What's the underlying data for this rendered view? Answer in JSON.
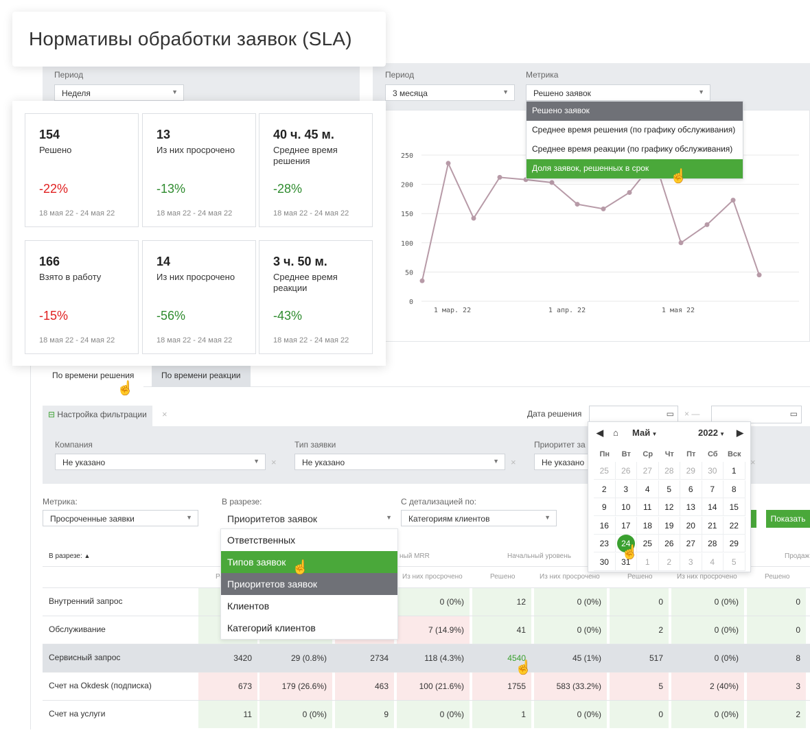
{
  "title": "Нормативы обработки заявок (SLA)",
  "left_filter": {
    "label": "Период",
    "value": "Неделя"
  },
  "right_filter": {
    "period_label": "Период",
    "period_value": "3 месяца",
    "metric_label": "Метрика",
    "metric_value": "Решено заявок"
  },
  "metric_options": [
    "Решено заявок",
    "Среднее время решения (по графику обслуживания)",
    "Среднее время реакции (по графику обслуживания)",
    "Доля заявок, решенных в срок"
  ],
  "stats": [
    {
      "value": "154",
      "name": "Решено",
      "pct": "-22%",
      "dates": "18 мая 22 - 24 мая 22"
    },
    {
      "value": "13",
      "name": "Из них просрочено",
      "pct": "-13%",
      "dates": "18 мая 22 - 24 мая 22"
    },
    {
      "value": "40 ч. 45 м.",
      "name": "Среднее время решения",
      "pct": "-28%",
      "dates": "18 мая 22 - 24 мая 22"
    },
    {
      "value": "166",
      "name": "Взято в работу",
      "pct": "-15%",
      "dates": "18 мая 22 - 24 мая 22"
    },
    {
      "value": "14",
      "name": "Из них просрочено",
      "pct": "-56%",
      "dates": "18 мая 22 - 24 мая 22"
    },
    {
      "value": "3 ч. 50 м.",
      "name": "Среднее время реакции",
      "pct": "-43%",
      "dates": "18 мая 22 - 24 мая 22"
    }
  ],
  "chart_data": {
    "type": "line",
    "x_tick_labels": [
      "1 мар. 22",
      "1 апр. 22",
      "1 мая 22"
    ],
    "y_ticks": [
      0,
      50,
      100,
      150,
      200,
      250
    ],
    "ylim": [
      0,
      250
    ],
    "series": [
      {
        "values": [
          35,
          236,
          142,
          212,
          208,
          203,
          166,
          158,
          186,
          240,
          100,
          131,
          173,
          45
        ]
      }
    ],
    "color": "#b79aa7"
  },
  "tabs": [
    "По времени решения",
    "По времени реакции"
  ],
  "filter_settings": {
    "toggle_label": "Настройка фильтрации",
    "date_label": "Дата решения",
    "company_label": "Компания",
    "company_value": "Не указано",
    "type_label": "Тип заявки",
    "type_value": "Не указано",
    "priority_label": "Приоритет за",
    "priority_value": "Не указано"
  },
  "calendar": {
    "month": "Май",
    "year": "2022",
    "dow": [
      "Пн",
      "Вт",
      "Ср",
      "Чт",
      "Пт",
      "Сб",
      "Вск"
    ],
    "weeks": [
      [
        "25",
        "26",
        "27",
        "28",
        "29",
        "30",
        "1"
      ],
      [
        "2",
        "3",
        "4",
        "5",
        "6",
        "7",
        "8"
      ],
      [
        "9",
        "10",
        "11",
        "12",
        "13",
        "14",
        "15"
      ],
      [
        "16",
        "17",
        "18",
        "19",
        "20",
        "21",
        "22"
      ],
      [
        "23",
        "24",
        "25",
        "26",
        "27",
        "28",
        "29"
      ],
      [
        "30",
        "31",
        "1",
        "2",
        "3",
        "4",
        "5"
      ]
    ],
    "today": "24"
  },
  "report_controls": {
    "metric_label": "Метрика:",
    "metric_value": "Просроченные заявки",
    "slice_label": "В разрезе:",
    "slice_value": "Приоритетов заявок",
    "detail_label": "С детализацией по:",
    "detail_value": "Категориям клиентов",
    "show_button": "Показать"
  },
  "slice_options": [
    "Ответственных",
    "Типов заявок",
    "Приоритетов заявок",
    "Клиентов",
    "Категорий клиентов"
  ],
  "table": {
    "corner_header": "В разрезе:",
    "group_headers": [
      "ный MRR",
      "Начальный уровень",
      "Продаж"
    ],
    "sub_headers": [
      "Ре",
      "Из них просрочено",
      "Решено",
      "Из них просрочено",
      "Решено",
      "Из них просрочено",
      "Решено"
    ],
    "rows": [
      {
        "name": "Внутренний запрос",
        "cells": [
          "",
          "",
          "",
          "0 (0%)",
          "12",
          "0 (0%)",
          "0",
          "0 (0%)",
          "0"
        ]
      },
      {
        "name": "Обслуживание",
        "cells": [
          "",
          "",
          "",
          "7 (14.9%)",
          "41",
          "0 (0%)",
          "2",
          "0 (0%)",
          "0"
        ]
      },
      {
        "name": "Сервисный запрос",
        "cells": [
          "3420",
          "29 (0.8%)",
          "2734",
          "118 (4.3%)",
          "4540",
          "45 (1%)",
          "517",
          "0 (0%)",
          "8"
        ]
      },
      {
        "name": "Счет на Okdesk (подписка)",
        "cells": [
          "673",
          "179 (26.6%)",
          "463",
          "100 (21.6%)",
          "1755",
          "583 (33.2%)",
          "5",
          "2 (40%)",
          "3"
        ]
      },
      {
        "name": "Счет на услуги",
        "cells": [
          "11",
          "0 (0%)",
          "9",
          "0 (0%)",
          "1",
          "0 (0%)",
          "0",
          "0 (0%)",
          "2"
        ]
      }
    ]
  }
}
